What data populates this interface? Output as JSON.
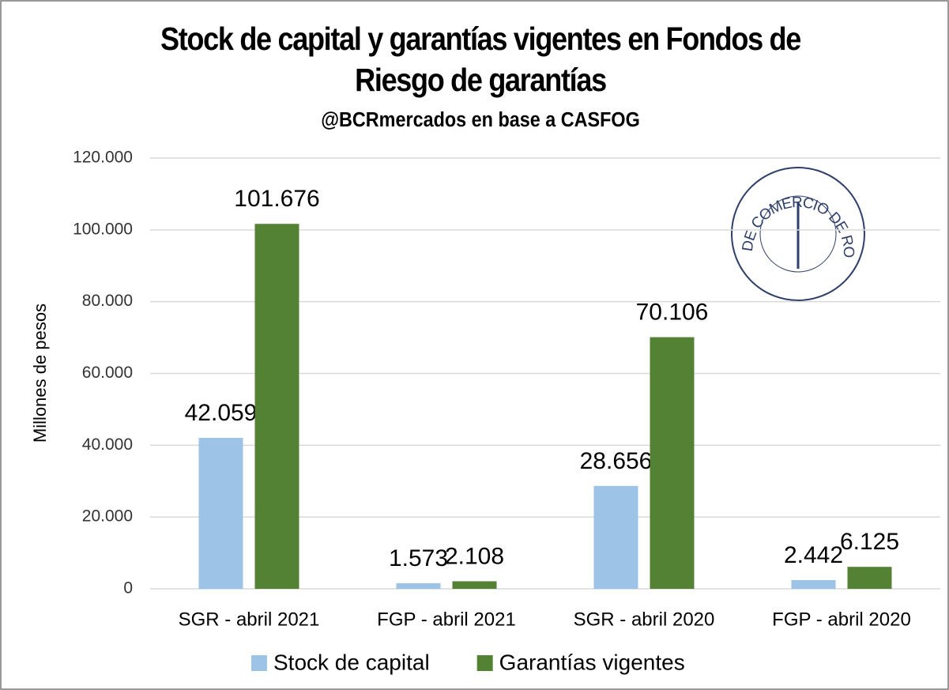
{
  "chart_data": {
    "type": "bar",
    "title": [
      "Stock de capital y garantías vigentes en Fondos de",
      "Riesgo de garantías"
    ],
    "subtitle": "@BCRmercados en base a CASFOG",
    "y_label": "Millones de pesos",
    "logo_text": "BOLSA DE COMERCIO DE ROSARIO",
    "categories": [
      "SGR - abril 2021",
      "FGP - abril 2021",
      "SGR - abril 2020",
      "FGP - abril 2020"
    ],
    "series": [
      {
        "name": "Stock de capital",
        "color": "#9dc3e6",
        "values": [
          42059,
          1573,
          28656,
          2442
        ],
        "value_labels": [
          "42.059",
          "1.573",
          "28.656",
          "2.442"
        ]
      },
      {
        "name": "Garantías vigentes",
        "color": "#548235",
        "values": [
          101676,
          2108,
          70106,
          6125
        ],
        "value_labels": [
          "101.676",
          "2.108",
          "70.106",
          "6.125"
        ]
      }
    ],
    "ylim": [
      0,
      120000
    ],
    "yticks": [
      0,
      {
        "value": 20000,
        "label": "20.000"
      },
      {
        "value": 40000,
        "label": "40.000"
      },
      {
        "value": 60000,
        "label": "60.000"
      },
      {
        "value": 80000,
        "label": "80.000"
      },
      {
        "value": 100000,
        "label": "100.000"
      },
      {
        "value": 120000,
        "label": "120.000"
      }
    ],
    "grid": true,
    "legend": "bottom"
  }
}
